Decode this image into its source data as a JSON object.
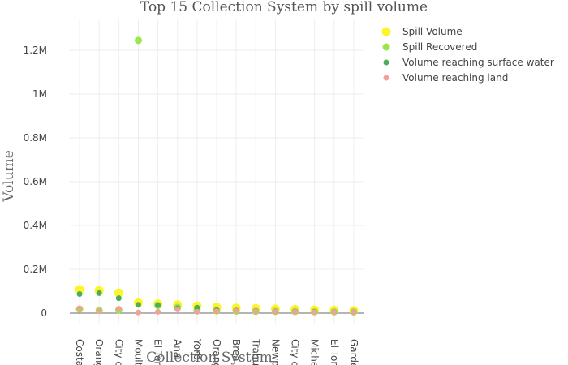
{
  "chart_data": {
    "type": "scatter",
    "title": "Top 15 Collection System by spill volume",
    "xlabel": "Collection System",
    "ylabel": "Volume",
    "ylim": [
      -10000,
      1330000
    ],
    "yticks": [
      0,
      200000,
      400000,
      600000,
      800000,
      1000000,
      1200000
    ],
    "ytick_labels": [
      "0",
      "0.2M",
      "0.4M",
      "0.6M",
      "0.8M",
      "1M",
      "1.2M"
    ],
    "grid": true,
    "legend_position": "top-right",
    "categories": [
      "Costa",
      "Orang",
      "City o",
      "Moult",
      "El Tor",
      "Ana",
      "Yorb",
      "Orang",
      "Brea",
      "Trabu",
      "Newp",
      "City o",
      "Miche",
      "El Tor",
      "Garde"
    ],
    "series": [
      {
        "name": "Spill Volume",
        "color": "#fcf52a",
        "marker_size": 5.5,
        "values": [
          108000,
          103000,
          92000,
          47000,
          42000,
          38000,
          33000,
          27000,
          23000,
          21000,
          19000,
          17000,
          15000,
          14000,
          12000
        ]
      },
      {
        "name": "Spill Recovered",
        "color": "#9be64d",
        "marker_size": 4.5,
        "values": [
          18000,
          12000,
          14000,
          1245000,
          35000,
          26000,
          12000,
          10000,
          9000,
          8000,
          8000,
          7000,
          6000,
          6000,
          6000
        ]
      },
      {
        "name": "Volume reaching surface water",
        "color": "#4cae58",
        "marker_size": 3.5,
        "values": [
          87000,
          91000,
          68000,
          38000,
          36000,
          22000,
          25000,
          14000,
          12000,
          10000,
          8000,
          7000,
          6000,
          5000,
          4000
        ]
      },
      {
        "name": "Volume reaching land",
        "color": "#f2a294",
        "marker_size": 3.5,
        "values": [
          22000,
          9000,
          20000,
          3000,
          6000,
          17000,
          6000,
          9000,
          10000,
          9000,
          7000,
          6000,
          5000,
          5000,
          5000
        ]
      }
    ]
  }
}
